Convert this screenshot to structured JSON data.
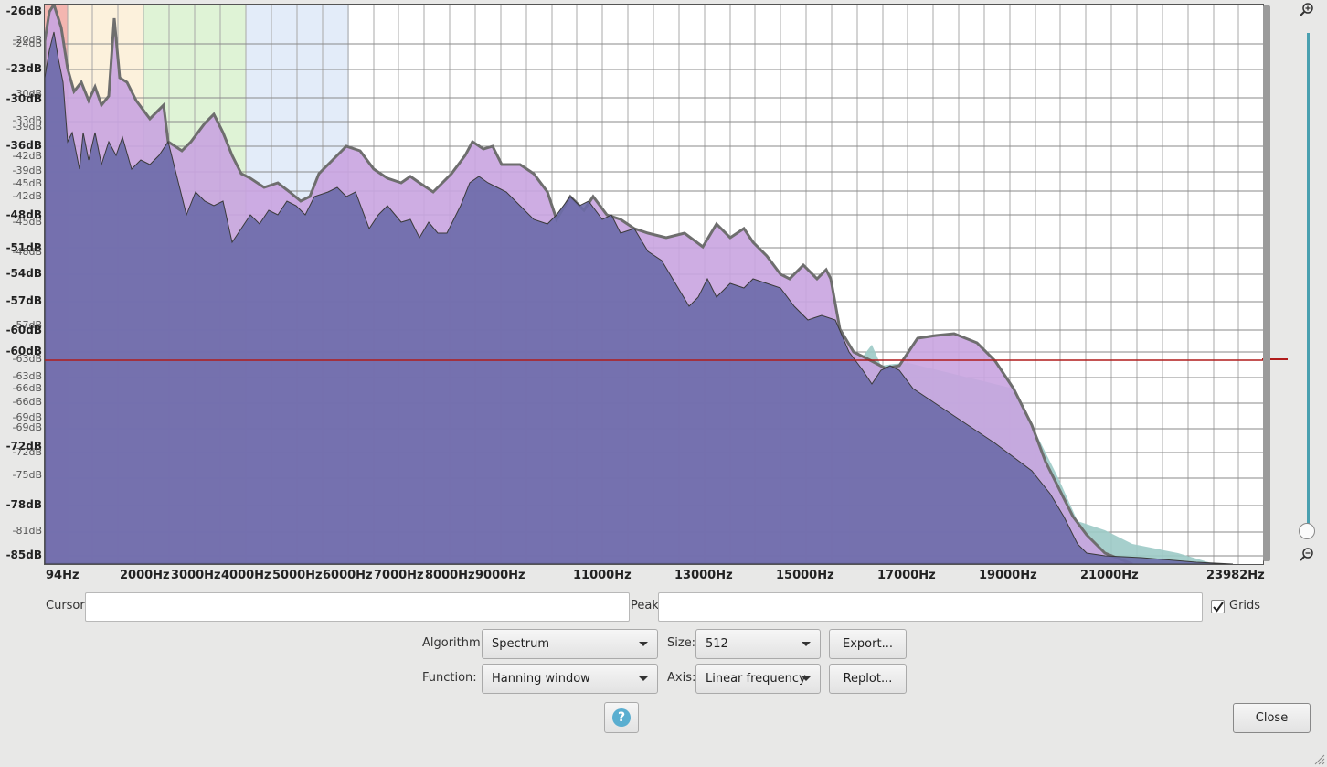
{
  "plot": {
    "db_labels_major": [
      "-26dB",
      "-23dB",
      "-30dB",
      "-36dB",
      "-48dB",
      "-51dB",
      "-54dB",
      "-57dB",
      "-60dB",
      "-63dB",
      "-66dB",
      "-69dB",
      "-72dB",
      "-78dB",
      "-85dB"
    ],
    "db_labels_minor": [
      "-20dB",
      "-24dB",
      "-30dB",
      "-33dB",
      "-39dB",
      "-36dB",
      "-42dB",
      "-39dB",
      "-45dB",
      "-42dB",
      "-45dB",
      "-48dB",
      "-57dB",
      "-63dB",
      "-66dB",
      "-69dB",
      "-72dB",
      "-75dB",
      "-81dB"
    ],
    "freq_labels": [
      "94Hz",
      "2000Hz",
      "3000Hz",
      "4000Hz",
      "5000Hz",
      "6000Hz",
      "7000Hz",
      "8000Hz",
      "9000Hz",
      "11000Hz",
      "13000Hz",
      "15000Hz",
      "17000Hz",
      "19000Hz",
      "21000Hz",
      "23982Hz"
    ],
    "colors": {
      "spectrum_light": "#c9a4e0",
      "spectrum_dark": "#6c6aa8",
      "outline": "#6e6e6e",
      "cursor_line": "#b01c1c",
      "teal": "#9ccac6",
      "band_red": "#f4b6b0",
      "band_yellow": "#fcf1dc",
      "band_green": "#dff3d6",
      "band_blue": "#e3ecf9"
    }
  },
  "controls": {
    "cursor_label": "Cursor:",
    "peak_label": "Peak:",
    "grids_label": "Grids",
    "grids_checked": true,
    "algorithm_label": "Algorithm:",
    "algorithm_value": "Spectrum",
    "size_label": "Size:",
    "size_value": "512",
    "export_button": "Export...",
    "function_label": "Function:",
    "function_value": "Hanning window",
    "axis_label": "Axis:",
    "axis_value": "Linear frequency",
    "replot_button": "Replot...",
    "help_glyph": "?",
    "close_button": "Close"
  },
  "icons": {
    "zoom_in": "zoom-in-icon",
    "zoom_out": "zoom-out-icon",
    "help": "help-icon",
    "checkmark": "checkmark-icon",
    "resize": "resize-grip-icon"
  }
}
